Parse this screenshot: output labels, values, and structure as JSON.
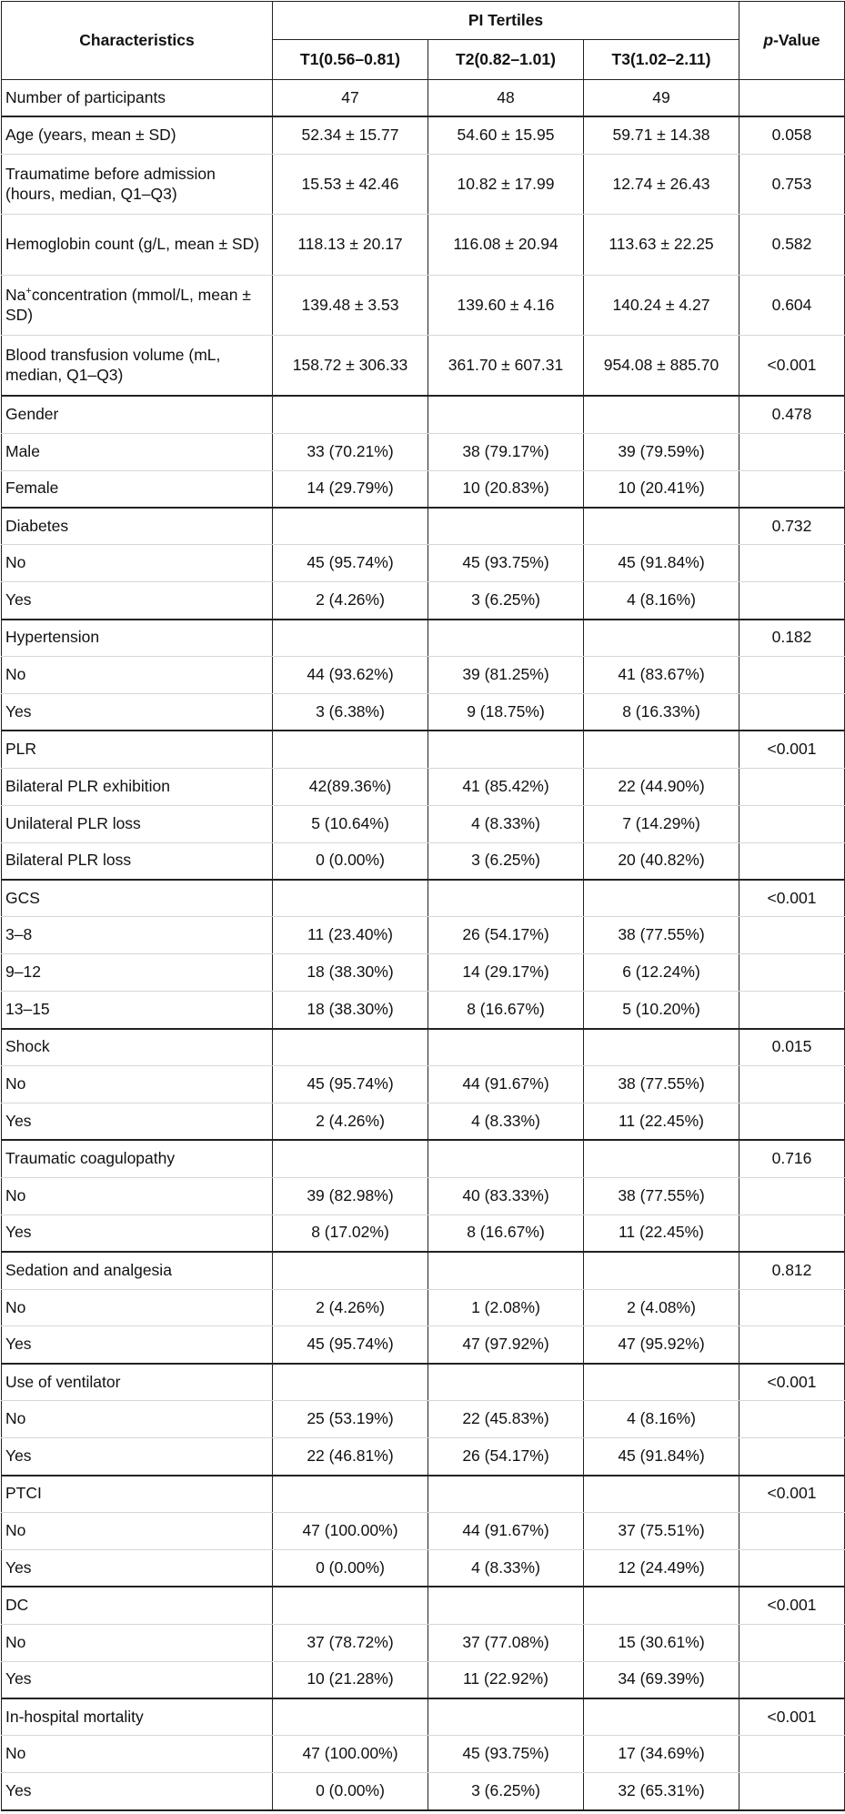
{
  "header": {
    "characteristics": "Characteristics",
    "group": "PI Tertiles",
    "t1": "T1(0.56–0.81)",
    "t2": "T2(0.82–1.01)",
    "t3": "T3(1.02–2.11)",
    "pvalue_italic": "p",
    "pvalue_rest": "-Value"
  },
  "na": {
    "pre": "Na",
    "sup": "+",
    "post": "concentration (mmol/L, mean ± SD)"
  },
  "rows": [
    {
      "label": "Number of participants",
      "t1": "47",
      "t2": "48",
      "t3": "49",
      "p": ""
    },
    {
      "label": "Age (years, mean ± SD)",
      "t1": "52.34 ± 15.77",
      "t2": "54.60 ± 15.95",
      "t3": "59.71 ± 14.38",
      "p": "0.058"
    },
    {
      "label": "Traumatime before admission (hours, median, Q1–Q3)",
      "t1": "15.53 ± 42.46",
      "t2": "10.82 ± 17.99",
      "t3": "12.74 ± 26.43",
      "p": "0.753"
    },
    {
      "label": "Hemoglobin count (g/L, mean ± SD)",
      "t1": "118.13 ± 20.17",
      "t2": "116.08 ± 20.94",
      "t3": "113.63 ± 22.25",
      "p": "0.582"
    },
    {
      "label": "",
      "t1": "139.48 ± 3.53",
      "t2": "139.60 ± 4.16",
      "t3": "140.24 ± 4.27",
      "p": "0.604"
    },
    {
      "label": "Blood transfusion volume (mL, median, Q1–Q3)",
      "t1": "158.72 ± 306.33",
      "t2": "361.70 ± 607.31",
      "t3": "954.08 ± 885.70",
      "p": "<0.001"
    },
    {
      "label": "Gender",
      "t1": "",
      "t2": "",
      "t3": "",
      "p": "0.478"
    },
    {
      "label": "Male",
      "t1": "33 (70.21%)",
      "t2": "38 (79.17%)",
      "t3": "39 (79.59%)",
      "p": ""
    },
    {
      "label": "Female",
      "t1": "14 (29.79%)",
      "t2": "10 (20.83%)",
      "t3": "10 (20.41%)",
      "p": ""
    },
    {
      "label": "Diabetes",
      "t1": "",
      "t2": "",
      "t3": "",
      "p": "0.732"
    },
    {
      "label": "No",
      "t1": "45 (95.74%)",
      "t2": "45 (93.75%)",
      "t3": "45 (91.84%)",
      "p": ""
    },
    {
      "label": "Yes",
      "t1": "2 (4.26%)",
      "t2": "3 (6.25%)",
      "t3": "4 (8.16%)",
      "p": ""
    },
    {
      "label": "Hypertension",
      "t1": "",
      "t2": "",
      "t3": "",
      "p": "0.182"
    },
    {
      "label": "No",
      "t1": "44 (93.62%)",
      "t2": "39 (81.25%)",
      "t3": "41 (83.67%)",
      "p": ""
    },
    {
      "label": "Yes",
      "t1": "3 (6.38%)",
      "t2": "9 (18.75%)",
      "t3": "8 (16.33%)",
      "p": ""
    },
    {
      "label": "PLR",
      "t1": "",
      "t2": "",
      "t3": "",
      "p": "<0.001"
    },
    {
      "label": "Bilateral PLR exhibition",
      "t1": "42(89.36%)",
      "t2": "41 (85.42%)",
      "t3": "22 (44.90%)",
      "p": ""
    },
    {
      "label": "Unilateral PLR loss",
      "t1": "5 (10.64%)",
      "t2": "4 (8.33%)",
      "t3": "7 (14.29%)",
      "p": ""
    },
    {
      "label": "Bilateral PLR loss",
      "t1": "0 (0.00%)",
      "t2": "3 (6.25%)",
      "t3": "20 (40.82%)",
      "p": ""
    },
    {
      "label": "GCS",
      "t1": "",
      "t2": "",
      "t3": "",
      "p": "<0.001"
    },
    {
      "label": "3–8",
      "t1": "11 (23.40%)",
      "t2": "26 (54.17%)",
      "t3": "38 (77.55%)",
      "p": ""
    },
    {
      "label": "9–12",
      "t1": "18 (38.30%)",
      "t2": "14 (29.17%)",
      "t3": "6 (12.24%)",
      "p": ""
    },
    {
      "label": "13–15",
      "t1": "18 (38.30%)",
      "t2": "8 (16.67%)",
      "t3": "5 (10.20%)",
      "p": ""
    },
    {
      "label": "Shock",
      "t1": "",
      "t2": "",
      "t3": "",
      "p": "0.015"
    },
    {
      "label": "No",
      "t1": "45 (95.74%)",
      "t2": "44 (91.67%)",
      "t3": "38 (77.55%)",
      "p": ""
    },
    {
      "label": "Yes",
      "t1": "2 (4.26%)",
      "t2": "4 (8.33%)",
      "t3": "11 (22.45%)",
      "p": ""
    },
    {
      "label": "Traumatic coagulopathy",
      "t1": "",
      "t2": "",
      "t3": "",
      "p": "0.716"
    },
    {
      "label": "No",
      "t1": "39 (82.98%)",
      "t2": "40 (83.33%)",
      "t3": "38 (77.55%)",
      "p": ""
    },
    {
      "label": "Yes",
      "t1": "8 (17.02%)",
      "t2": "8 (16.67%)",
      "t3": "11 (22.45%)",
      "p": ""
    },
    {
      "label": "Sedation and analgesia",
      "t1": "",
      "t2": "",
      "t3": "",
      "p": "0.812"
    },
    {
      "label": "No",
      "t1": "2 (4.26%)",
      "t2": "1 (2.08%)",
      "t3": "2 (4.08%)",
      "p": ""
    },
    {
      "label": "Yes",
      "t1": "45 (95.74%)",
      "t2": "47 (97.92%)",
      "t3": "47 (95.92%)",
      "p": ""
    },
    {
      "label": "Use of ventilator",
      "t1": "",
      "t2": "",
      "t3": "",
      "p": "<0.001"
    },
    {
      "label": "No",
      "t1": "25 (53.19%)",
      "t2": "22 (45.83%)",
      "t3": "4 (8.16%)",
      "p": ""
    },
    {
      "label": "Yes",
      "t1": "22 (46.81%)",
      "t2": "26 (54.17%)",
      "t3": "45 (91.84%)",
      "p": ""
    },
    {
      "label": "PTCI",
      "t1": "",
      "t2": "",
      "t3": "",
      "p": "<0.001"
    },
    {
      "label": "No",
      "t1": "47 (100.00%)",
      "t2": "44 (91.67%)",
      "t3": "37 (75.51%)",
      "p": ""
    },
    {
      "label": "Yes",
      "t1": "0 (0.00%)",
      "t2": "4 (8.33%)",
      "t3": "12 (24.49%)",
      "p": ""
    },
    {
      "label": "DC",
      "t1": "",
      "t2": "",
      "t3": "",
      "p": "<0.001"
    },
    {
      "label": "No",
      "t1": "37 (78.72%)",
      "t2": "37 (77.08%)",
      "t3": "15 (30.61%)",
      "p": ""
    },
    {
      "label": "Yes",
      "t1": "10 (21.28%)",
      "t2": "11 (22.92%)",
      "t3": "34 (69.39%)",
      "p": ""
    },
    {
      "label": "In-hospital mortality",
      "t1": "",
      "t2": "",
      "t3": "",
      "p": "<0.001"
    },
    {
      "label": "No",
      "t1": "47 (100.00%)",
      "t2": "45 (93.75%)",
      "t3": "17 (34.69%)",
      "p": ""
    },
    {
      "label": "Yes",
      "t1": "0 (0.00%)",
      "t2": "3 (6.25%)",
      "t3": "32 (65.31%)",
      "p": ""
    }
  ]
}
